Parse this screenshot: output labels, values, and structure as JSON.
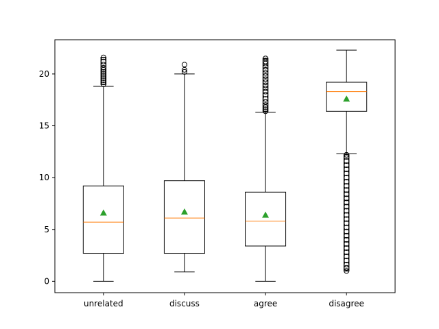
{
  "chart_data": {
    "type": "box",
    "title": "",
    "xlabel": "",
    "ylabel": "",
    "ylim": [
      -1.1,
      23.3
    ],
    "yticks": [
      0,
      5,
      10,
      15,
      20
    ],
    "grid": false,
    "legend": "none",
    "colors": {
      "box": "#000000",
      "median": "#ff7f0e",
      "mean": "#2ca02c",
      "flier": "#000000"
    },
    "categories": [
      "unrelated",
      "discuss",
      "agree",
      "disagree"
    ],
    "boxes": [
      {
        "label": "unrelated",
        "whisker_low": 0.0,
        "q1": 2.7,
        "median": 5.7,
        "q3": 9.2,
        "whisker_high": 18.8,
        "mean": 6.6,
        "outliers_low": [],
        "outliers_high": [
          19.0,
          19.2,
          19.4,
          19.6,
          19.8,
          20.0,
          20.2,
          20.4,
          20.6,
          20.9,
          21.2,
          21.6
        ]
      },
      {
        "label": "discuss",
        "whisker_low": 0.9,
        "q1": 2.7,
        "median": 6.1,
        "q3": 9.7,
        "whisker_high": 20.0,
        "mean": 6.7,
        "outliers_low": [],
        "outliers_high": [
          20.2,
          20.4,
          20.9
        ]
      },
      {
        "label": "agree",
        "whisker_low": 0.0,
        "q1": 3.4,
        "median": 5.8,
        "q3": 8.6,
        "whisker_high": 16.3,
        "mean": 6.4,
        "outliers_low": [],
        "outliers_high": [
          16.4,
          16.6,
          16.8,
          17.0,
          17.3,
          17.6,
          18.0,
          18.3,
          18.6,
          18.9,
          19.2,
          19.5,
          19.8,
          20.1,
          20.4,
          20.7,
          21.0,
          21.2,
          21.5
        ]
      },
      {
        "label": "disagree",
        "whisker_low": 12.3,
        "q1": 16.4,
        "median": 18.3,
        "q3": 19.2,
        "whisker_high": 22.3,
        "mean": 17.6,
        "outliers_low": [
          1.0,
          1.3,
          1.6,
          2.0,
          2.4,
          2.8,
          3.2,
          3.6,
          4.0,
          4.4,
          4.8,
          5.2,
          5.6,
          6.0,
          6.4,
          6.8,
          7.2,
          7.6,
          8.0,
          8.4,
          8.8,
          9.2,
          9.6,
          10.0,
          10.4,
          10.8,
          11.2,
          11.6,
          12.0,
          12.2
        ],
        "outliers_high": []
      }
    ]
  }
}
